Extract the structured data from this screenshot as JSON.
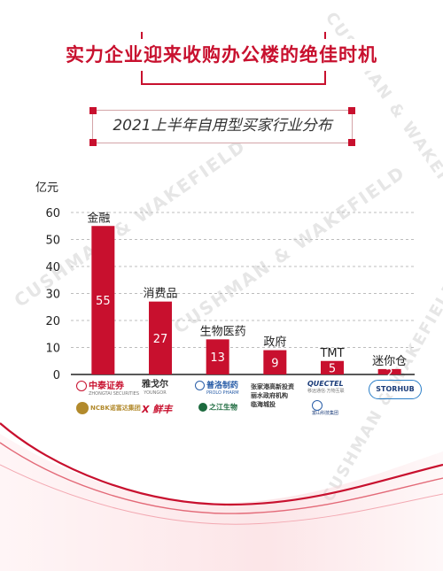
{
  "header": {
    "title": "实力企业迎来收购办公楼的绝佳时机"
  },
  "subtitle": "2021上半年自用型买家行业分布",
  "chart_data": {
    "type": "bar",
    "title": "2021上半年自用型买家行业分布",
    "ylabel": "亿元",
    "ylim": [
      0,
      60
    ],
    "yticks": [
      0,
      10,
      20,
      30,
      40,
      50,
      60
    ],
    "categories": [
      "金融",
      "消费品",
      "生物医药",
      "政府",
      "TMT",
      "迷你仓"
    ],
    "values": [
      55,
      27,
      13,
      9,
      5,
      2
    ],
    "data_labels": [
      "55",
      "27",
      "13",
      "9",
      "5",
      "2"
    ],
    "grid": true,
    "legend": "none",
    "colors": {
      "bar": "#c8102e",
      "label": "#ffffff",
      "grid": "#bdbdbd"
    }
  },
  "logos": {
    "finance_1": "中泰证券",
    "finance_1_en": "ZHONGTAI SECURITIES",
    "finance_2": "NCBK诺富达集团",
    "consumer_1": "雅戈尔",
    "consumer_1_en": "YOUNGOR",
    "consumer_2": "X 鲜丰",
    "bio_1": "普洛制药",
    "bio_1_en": "PROLO PHARM",
    "bio_2": "之江生物",
    "gov_lines": [
      "张家港高新投资",
      "丽水政府机构",
      "临海城投"
    ],
    "tmt_1": "QUECTEL",
    "tmt_1_en": "移远通信·万物互联",
    "tmt_2": "FUSHAN 富山科技",
    "tmt_2_sub": "富山科技集团",
    "mini_1": "STORHUB"
  },
  "watermarks": {
    "text": "CUSHMAN & WAKEFIELD"
  },
  "colors": {
    "accent": "#c8102e",
    "pill_border": "#d4a5a8"
  }
}
